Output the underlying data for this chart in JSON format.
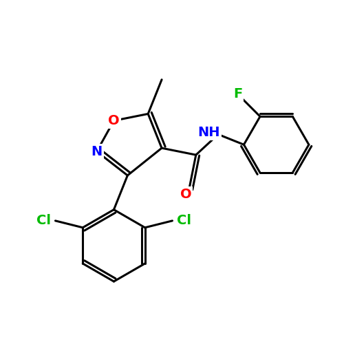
{
  "background_color": "#ffffff",
  "bond_color": "#000000",
  "bond_width": 2.2,
  "atom_colors": {
    "O": "#ff0000",
    "N": "#0000ff",
    "Cl": "#00bb00",
    "F": "#00bb00",
    "C": "#000000",
    "H": "#0000ff"
  },
  "figsize": [
    5.0,
    5.0
  ],
  "dpi": 100
}
